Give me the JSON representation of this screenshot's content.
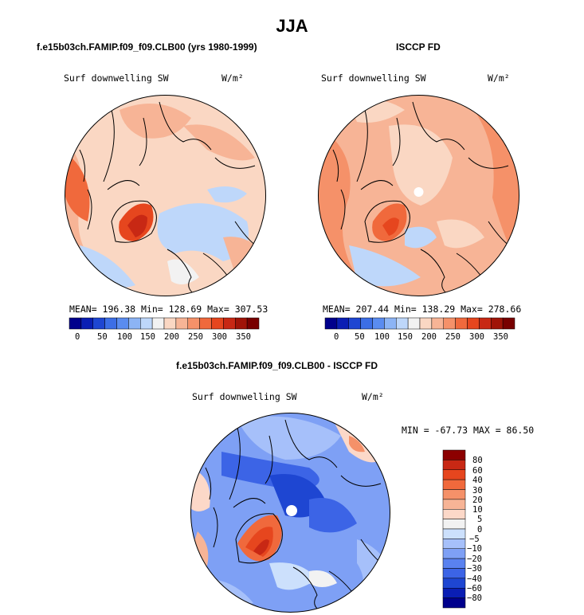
{
  "figure": {
    "title": "JJA",
    "colors": {
      "abs_scale": [
        "#00008c",
        "#0a1eb4",
        "#1e46d2",
        "#3c6ee6",
        "#5a8cf0",
        "#8cb4f5",
        "#bed7fa",
        "#f2f2f2",
        "#fad7c3",
        "#f7b496",
        "#f59169",
        "#f0693c",
        "#e6461e",
        "#c82814",
        "#a01408",
        "#780000"
      ],
      "diff_scale": [
        "#00008c",
        "#0a1eb4",
        "#1e46d2",
        "#3c64e6",
        "#5a82f0",
        "#7ea0f5",
        "#a6c0fa",
        "#cce0fc",
        "#f2f2f2",
        "#fcd8c8",
        "#f7b496",
        "#f59169",
        "#f0693c",
        "#e6461e",
        "#c82814",
        "#8c0000"
      ],
      "coast": "#000000"
    }
  },
  "panels": [
    {
      "title": "f.e15b03ch.FAMIP.f09_f09.CLB00 (yrs 1980-1999)",
      "variable": "Surf downwelling SW",
      "units": "W/m²",
      "stats": "MEAN= 196.38  Min= 128.69  Max= 307.53",
      "colorbar_ticks": [
        "0",
        "50",
        "100",
        "150",
        "200",
        "250",
        "300",
        "350"
      ]
    },
    {
      "title": "ISCCP FD",
      "variable": "Surf downwelling SW",
      "units": "W/m²",
      "stats": "MEAN= 207.44  Min= 138.29  Max= 278.66",
      "colorbar_ticks": [
        "0",
        "50",
        "100",
        "150",
        "200",
        "250",
        "300",
        "350"
      ]
    },
    {
      "title": "f.e15b03ch.FAMIP.f09_f09.CLB00 - ISCCP FD",
      "variable": "Surf downwelling SW",
      "units": "W/m²",
      "stats": "MIN = -67.73 MAX =  86.50",
      "colorbar_ticks": [
        "80",
        "60",
        "40",
        "30",
        "20",
        "10",
        "5",
        "0",
        "−5",
        "−10",
        "−20",
        "−30",
        "−40",
        "−60",
        "−80"
      ]
    }
  ]
}
